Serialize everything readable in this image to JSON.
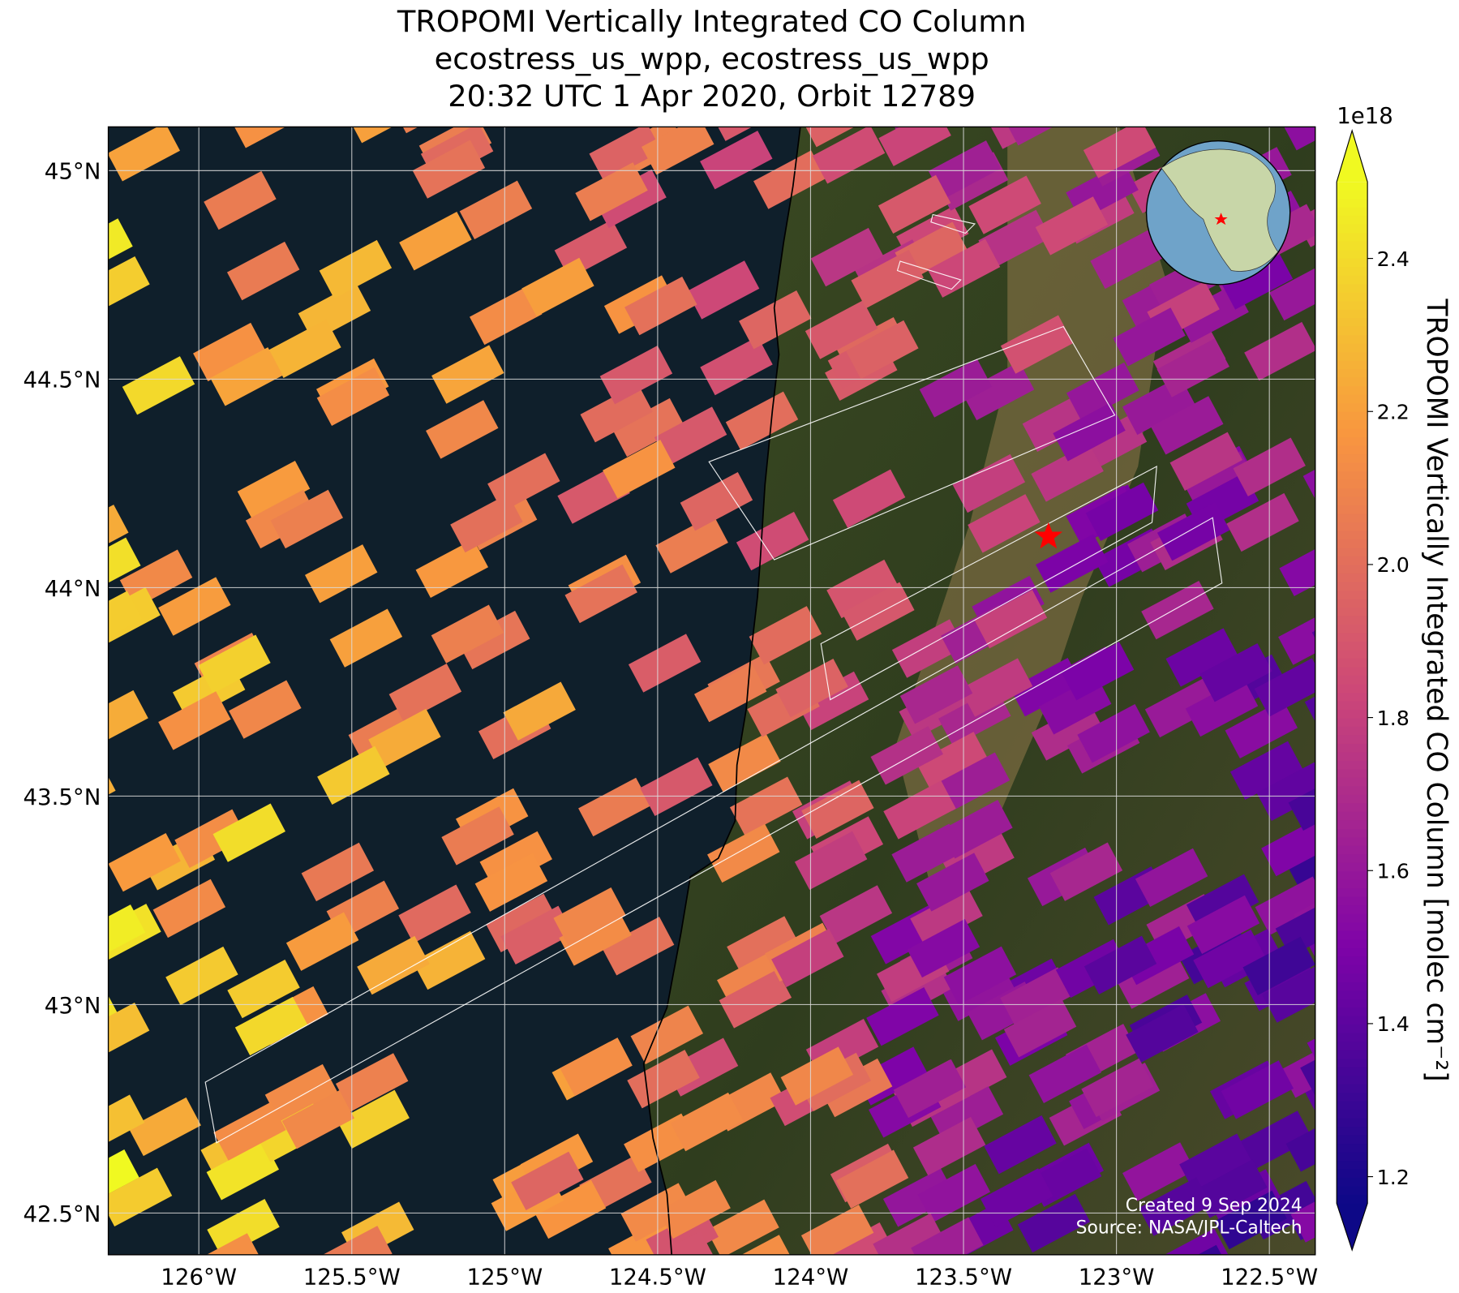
{
  "chart_data": {
    "type": "map",
    "title": [
      "TROPOMI Vertically Integrated CO Column",
      "ecostress_us_wpp, ecostress_us_wpp",
      "20:32 UTC 1 Apr 2020, Orbit 12789"
    ],
    "xlim": [
      -126.296,
      -122.35
    ],
    "ylim": [
      42.4,
      45.105
    ],
    "xticks": [
      {
        "value": -126,
        "label": "126°W"
      },
      {
        "value": -125.5,
        "label": "125.5°W"
      },
      {
        "value": -125,
        "label": "125°W"
      },
      {
        "value": -124.5,
        "label": "124.5°W"
      },
      {
        "value": -124,
        "label": "124°W"
      },
      {
        "value": -123.5,
        "label": "123.5°W"
      },
      {
        "value": -123,
        "label": "123°W"
      },
      {
        "value": -122.5,
        "label": "122.5°W"
      }
    ],
    "yticks": [
      {
        "value": 42.5,
        "label": "42.5°N"
      },
      {
        "value": 43,
        "label": "43°N"
      },
      {
        "value": 43.5,
        "label": "43.5°N"
      },
      {
        "value": 44,
        "label": "44°N"
      },
      {
        "value": 44.5,
        "label": "44.5°N"
      },
      {
        "value": 45,
        "label": "45°N"
      }
    ],
    "grid": true,
    "colorbar": {
      "label": "TROPOMI Vertically Integrated CO Column [molec cm⁻²]",
      "offset_label": "1e18",
      "colormap": "plasma",
      "clim": [
        1.165,
        2.5
      ],
      "extend": "both",
      "ticks": [
        {
          "value": 1.2,
          "label": "1.2"
        },
        {
          "value": 1.4,
          "label": "1.4"
        },
        {
          "value": 1.6,
          "label": "1.6"
        },
        {
          "value": 1.8,
          "label": "1.8"
        },
        {
          "value": 2,
          "label": "2.0"
        },
        {
          "value": 2.2,
          "label": "2.2"
        },
        {
          "value": 2.4,
          "label": "2.4"
        }
      ]
    },
    "annotations": [
      "Created 9 Sep 2024",
      "Source: NASA/JPL-Caltech"
    ]
  }
}
